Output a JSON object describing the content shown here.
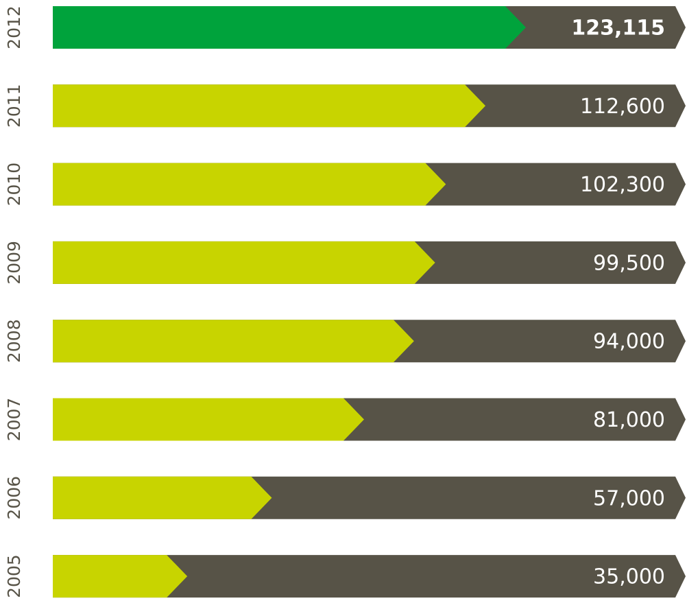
{
  "chart_data": {
    "type": "bar",
    "categories": [
      "2012",
      "2011",
      "2010",
      "2009",
      "2008",
      "2007",
      "2006",
      "2005"
    ],
    "values": [
      123115,
      112600,
      102300,
      99500,
      94000,
      81000,
      57000,
      35000
    ],
    "value_labels": [
      "123,115",
      "112,600",
      "102,300",
      "99,500",
      "94,000",
      "81,000",
      "57,000",
      "35,000"
    ],
    "colors": [
      "#00a33c",
      "#c8d400",
      "#c8d400",
      "#c8d400",
      "#c8d400",
      "#c8d400",
      "#c8d400",
      "#c8d400"
    ],
    "track_color": "#575347"
  }
}
